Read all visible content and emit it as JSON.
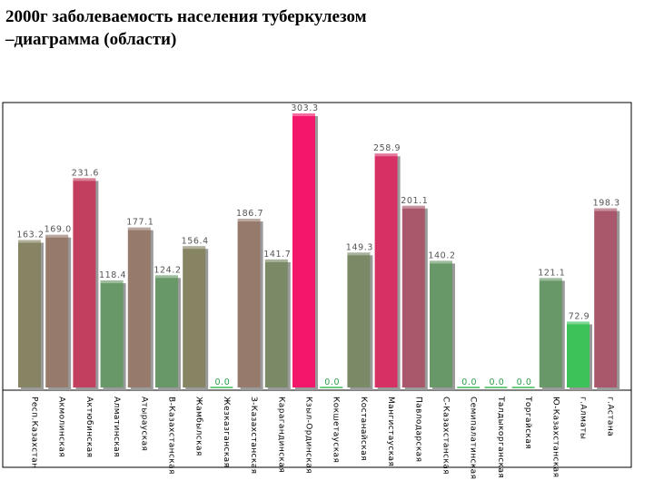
{
  "title": "2000г заболеваемость населения туберкулезом\n–диаграмма (области)",
  "chart_data": {
    "type": "bar",
    "title": "",
    "xlabel": "",
    "ylabel": "",
    "ylim": [
      0,
      330
    ],
    "grid": false,
    "categories": [
      "Респ.Казахстан",
      "Акмолинская",
      "Актюбинская",
      "Алматинская",
      "Атырауская",
      "В-Казахстанская",
      "Жамбылская",
      "Жезказганская",
      "З-Казахстанская",
      "Карагандинская",
      "Кзыл-Ординская",
      "Кокшетауская",
      "Костанайская",
      "Мангистауская",
      "Павлодарская",
      "С-Казахстанская",
      "Семипалатинская",
      "Талдыкорганская",
      "Торгайская",
      "Ю-Казахстанская",
      "г.Алматы",
      "г.Астана"
    ],
    "values": [
      163.2,
      169.0,
      231.6,
      118.4,
      177.1,
      124.2,
      156.4,
      0.0,
      186.7,
      141.7,
      303.3,
      0.0,
      149.3,
      258.9,
      201.1,
      140.2,
      0.0,
      0.0,
      0.0,
      121.1,
      72.9,
      198.3
    ],
    "value_labels": [
      "163.2",
      "169.0",
      "231.6",
      "118.4",
      "177.1",
      "124.2",
      "156.4",
      "0.0",
      "186.7",
      "141.7",
      "303.3",
      "0.0",
      "149.3",
      "258.9",
      "201.1",
      "140.2",
      "0.0",
      "0.0",
      "0.0",
      "121.1",
      "72.9",
      "198.3"
    ],
    "colors": [
      "#878464",
      "#967a6c",
      "#c23f60",
      "#689867",
      "#967a6c",
      "#689867",
      "#878464",
      "#3fba58",
      "#967a6c",
      "#7b8a66",
      "#f2176b",
      "#3fba58",
      "#7b8a66",
      "#d63065",
      "#a8586a",
      "#689867",
      "#3fba58",
      "#3fba58",
      "#3fba58",
      "#689867",
      "#3dc25a",
      "#a8586a"
    ]
  }
}
